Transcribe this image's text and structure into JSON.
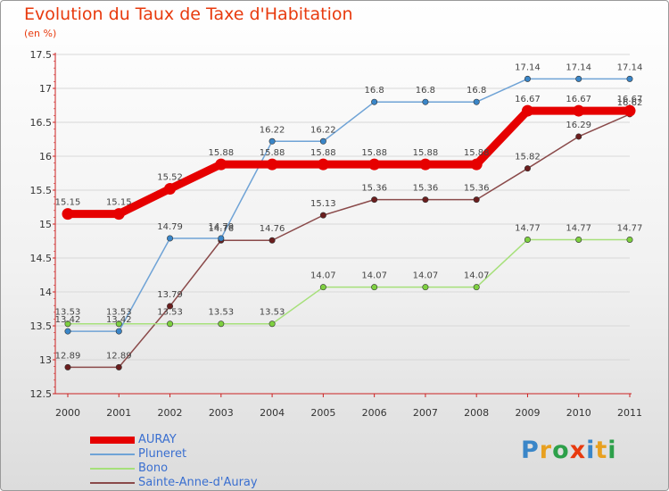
{
  "title": "Evolution du Taux de Taxe d'Habitation",
  "subtitle": "(en %)",
  "logo": "Proxiti",
  "colors": {
    "title": "#e83a0e",
    "axis": "#cc2222",
    "grid": "#d8d8d8",
    "logo": [
      "#3a86c8",
      "#e8a020",
      "#2da04a",
      "#e83a0e",
      "#3a86c8",
      "#e8a020",
      "#2da04a"
    ]
  },
  "chart_data": {
    "type": "line",
    "title": "Evolution du Taux de Taxe d'Habitation",
    "ylabel": "(en %)",
    "xlabel": "",
    "x": [
      "2000",
      "2001",
      "2002",
      "2003",
      "2004",
      "2005",
      "2006",
      "2007",
      "2008",
      "2009",
      "2010",
      "2011"
    ],
    "ylim": [
      12.5,
      17.5
    ],
    "yticks": [
      "12.5",
      "13",
      "13.5",
      "14",
      "14.5",
      "15",
      "15.5",
      "16",
      "16.5",
      "17",
      "17.5"
    ],
    "grid": "horizontal",
    "legend_position": "bottom-left",
    "series": [
      {
        "name": "AURAY",
        "color": "#e60000",
        "thick": true,
        "values": [
          15.15,
          15.15,
          15.52,
          15.88,
          15.88,
          15.88,
          15.88,
          15.88,
          15.88,
          16.67,
          16.67,
          16.67
        ],
        "labels": [
          "15.15",
          "15.15",
          "15.52",
          "15.88",
          "15.88",
          "15.88",
          "15.88",
          "15.88",
          "15.88",
          "16.67",
          "16.67",
          "16.67"
        ]
      },
      {
        "name": "Pluneret",
        "color": "#6fa3d6",
        "dot": "#3a86c8",
        "values": [
          13.42,
          13.42,
          14.79,
          14.79,
          16.22,
          16.22,
          16.8,
          16.8,
          16.8,
          17.14,
          17.14,
          17.14
        ],
        "labels": [
          "13.42",
          "13.42",
          "14.79",
          "14.79",
          "16.22",
          "16.22",
          "16.8",
          "16.8",
          "16.8",
          "17.14",
          "17.14",
          "17.14"
        ]
      },
      {
        "name": "Bono",
        "color": "#a6e07a",
        "dot": "#7ed040",
        "values": [
          13.53,
          13.53,
          13.53,
          13.53,
          13.53,
          14.07,
          14.07,
          14.07,
          14.07,
          14.77,
          14.77,
          14.77
        ],
        "labels": [
          "13.53",
          "13.53",
          "13.53",
          "13.53",
          "13.53",
          "14.07",
          "14.07",
          "14.07",
          "14.07",
          "14.77",
          "14.77",
          "14.77"
        ]
      },
      {
        "name": "Sainte-Anne-d'Auray",
        "color": "#8a4a4a",
        "dot": "#6b1e1e",
        "values": [
          12.89,
          12.89,
          13.79,
          14.76,
          14.76,
          15.13,
          15.36,
          15.36,
          15.36,
          15.82,
          16.29,
          16.62
        ],
        "labels": [
          "12.89",
          "12.89",
          "13.79",
          "14.76",
          "14.76",
          "15.13",
          "15.36",
          "15.36",
          "15.36",
          "15.82",
          "16.29",
          "16.62"
        ]
      }
    ]
  }
}
